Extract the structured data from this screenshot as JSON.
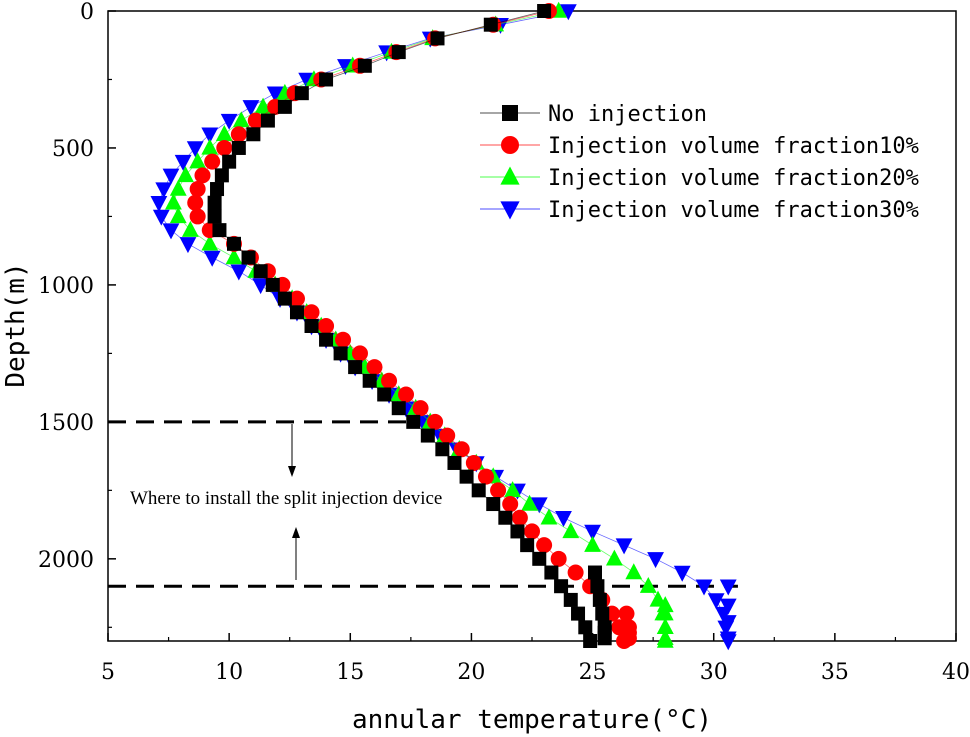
{
  "chart_data": {
    "type": "scatter",
    "title": "",
    "xlabel": "annular temperature(°C)",
    "ylabel": "Depth(m)",
    "xlim": [
      5,
      40
    ],
    "ylim": [
      2300,
      0
    ],
    "x_ticks": [
      "5",
      "10",
      "15",
      "20",
      "25",
      "30",
      "35",
      "40"
    ],
    "y_ticks": [
      "0",
      "500",
      "1000",
      "1500",
      "2000"
    ],
    "legend_position": "top-right",
    "annotations": {
      "device_label": "Where to install the split injection device",
      "upper_line_depth": 1500,
      "lower_line_depth": 2100
    },
    "series": [
      {
        "name": "No injection",
        "marker": "square",
        "color": "#000000",
        "x": [
          23.0,
          20.8,
          18.6,
          17.0,
          15.6,
          14.0,
          13.0,
          12.3,
          11.6,
          11.0,
          10.4,
          10.0,
          9.7,
          9.5,
          9.4,
          9.4,
          9.6,
          10.2,
          10.8,
          11.3,
          11.8,
          12.3,
          12.8,
          13.4,
          14.0,
          14.6,
          15.2,
          15.8,
          16.4,
          17.0,
          17.6,
          18.2,
          18.8,
          19.3,
          19.8,
          20.3,
          20.9,
          21.4,
          21.9,
          22.3,
          22.8,
          23.3,
          23.7,
          24.1,
          24.4,
          24.7,
          24.9,
          25.1,
          25.2,
          25.3,
          25.4,
          25.5,
          25.5,
          25.5
        ],
        "y": [
          0,
          50,
          100,
          150,
          200,
          250,
          300,
          350,
          400,
          450,
          500,
          550,
          600,
          650,
          700,
          750,
          800,
          850,
          900,
          950,
          1000,
          1050,
          1100,
          1150,
          1200,
          1250,
          1300,
          1350,
          1400,
          1450,
          1500,
          1550,
          1600,
          1650,
          1700,
          1750,
          1800,
          1850,
          1900,
          1950,
          2000,
          2050,
          2100,
          2150,
          2200,
          2250,
          2300,
          2050,
          2100,
          2150,
          2200,
          2250,
          2270,
          2290
        ]
      },
      {
        "name": "Injection volume fraction10%",
        "marker": "circle",
        "color": "#ff0000",
        "x": [
          23.2,
          20.9,
          18.5,
          16.9,
          15.4,
          13.8,
          12.7,
          11.9,
          11.1,
          10.4,
          9.8,
          9.3,
          8.9,
          8.7,
          8.6,
          8.7,
          9.2,
          10.2,
          10.9,
          11.6,
          12.2,
          12.8,
          13.4,
          14.0,
          14.7,
          15.4,
          16.0,
          16.6,
          17.3,
          17.9,
          18.5,
          19.0,
          19.6,
          20.1,
          20.6,
          21.1,
          21.6,
          22.0,
          22.5,
          23.0,
          23.6,
          24.3,
          24.9,
          25.4,
          25.8,
          26.1,
          26.3,
          26.4,
          26.5,
          26.5,
          26.5
        ],
        "y": [
          0,
          50,
          100,
          150,
          200,
          250,
          300,
          350,
          400,
          450,
          500,
          550,
          600,
          650,
          700,
          750,
          800,
          850,
          900,
          950,
          1000,
          1050,
          1100,
          1150,
          1200,
          1250,
          1300,
          1350,
          1400,
          1450,
          1500,
          1550,
          1600,
          1650,
          1700,
          1750,
          1800,
          1850,
          1900,
          1950,
          2000,
          2050,
          2100,
          2150,
          2200,
          2250,
          2300,
          2200,
          2250,
          2270,
          2290
        ]
      },
      {
        "name": "Injection volume fraction20%",
        "marker": "triangle-up",
        "color": "#00ff00",
        "x": [
          23.6,
          21.0,
          18.4,
          16.7,
          15.1,
          13.5,
          12.3,
          11.4,
          10.5,
          9.8,
          9.2,
          8.7,
          8.2,
          7.9,
          7.7,
          7.9,
          8.4,
          9.2,
          10.2,
          11.1,
          11.9,
          12.6,
          13.2,
          13.8,
          14.4,
          15.0,
          15.6,
          16.3,
          17.0,
          17.7,
          18.3,
          18.9,
          19.5,
          20.2,
          20.9,
          21.7,
          22.4,
          23.2,
          24.1,
          25.0,
          25.9,
          26.7,
          27.3,
          27.7,
          27.9,
          28.0,
          28.0,
          28.0,
          28.0,
          28.0,
          28.0
        ],
        "y": [
          0,
          50,
          100,
          150,
          200,
          250,
          300,
          350,
          400,
          450,
          500,
          550,
          600,
          650,
          700,
          750,
          800,
          850,
          900,
          950,
          1000,
          1050,
          1100,
          1150,
          1200,
          1250,
          1300,
          1350,
          1400,
          1450,
          1500,
          1550,
          1600,
          1650,
          1700,
          1750,
          1800,
          1850,
          1900,
          1950,
          2000,
          2050,
          2100,
          2150,
          2200,
          2250,
          2300,
          2170,
          2200,
          2250,
          2290
        ]
      },
      {
        "name": "Injection volume fraction30%",
        "marker": "triangle-down",
        "color": "#0000ff",
        "x": [
          24.0,
          21.2,
          18.3,
          16.5,
          14.8,
          13.2,
          11.9,
          10.9,
          10.0,
          9.2,
          8.6,
          8.1,
          7.6,
          7.3,
          7.1,
          7.2,
          7.6,
          8.3,
          9.3,
          10.4,
          11.3,
          12.1,
          12.8,
          13.4,
          14.0,
          14.6,
          15.2,
          15.9,
          16.6,
          17.3,
          18.0,
          18.7,
          19.4,
          20.2,
          21.0,
          21.9,
          22.8,
          23.8,
          25.0,
          26.3,
          27.6,
          28.7,
          29.6,
          30.1,
          30.4,
          30.5,
          30.6,
          30.6,
          30.6,
          30.6,
          30.6
        ],
        "y": [
          0,
          50,
          100,
          150,
          200,
          250,
          300,
          350,
          400,
          450,
          500,
          550,
          600,
          650,
          700,
          750,
          800,
          850,
          900,
          950,
          1000,
          1050,
          1100,
          1150,
          1200,
          1250,
          1300,
          1350,
          1400,
          1450,
          1500,
          1550,
          1600,
          1650,
          1700,
          1750,
          1800,
          1850,
          1900,
          1950,
          2000,
          2050,
          2100,
          2150,
          2200,
          2250,
          2300,
          2100,
          2170,
          2230,
          2290
        ]
      }
    ]
  }
}
